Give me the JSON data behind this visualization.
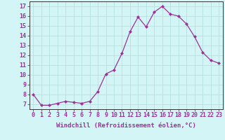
{
  "x": [
    0,
    1,
    2,
    3,
    4,
    5,
    6,
    7,
    8,
    9,
    10,
    11,
    12,
    13,
    14,
    15,
    16,
    17,
    18,
    19,
    20,
    21,
    22,
    23
  ],
  "y": [
    8.0,
    6.9,
    6.9,
    7.1,
    7.3,
    7.2,
    7.1,
    7.3,
    8.3,
    10.1,
    10.5,
    12.2,
    14.4,
    15.9,
    14.9,
    16.4,
    17.0,
    16.2,
    16.0,
    15.2,
    13.9,
    12.3,
    11.5,
    11.2
  ],
  "line_color": "#993399",
  "marker": "D",
  "marker_size": 2.0,
  "bg_color": "#d4f5f5",
  "grid_color": "#b0dede",
  "xlabel": "Windchill (Refroidissement éolien,°C)",
  "ylabel_ticks": [
    7,
    8,
    9,
    10,
    11,
    12,
    13,
    14,
    15,
    16,
    17
  ],
  "xlim": [
    -0.5,
    23.5
  ],
  "ylim": [
    6.5,
    17.5
  ],
  "xlabel_fontsize": 6.5,
  "tick_fontsize": 6.0,
  "label_color": "#993399"
}
